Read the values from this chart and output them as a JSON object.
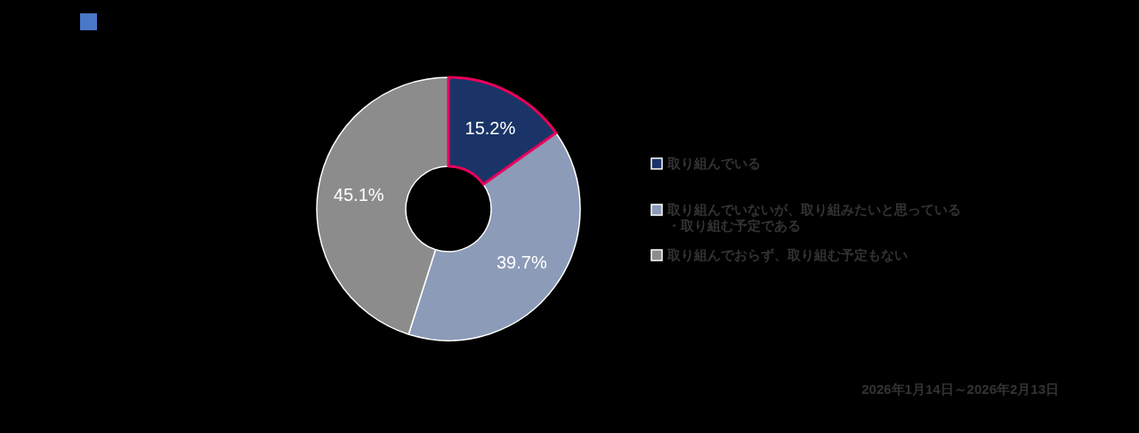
{
  "chart_data": {
    "type": "donut",
    "categories": [
      "取り組んでいる",
      "取り組んでいないが、取り組みたいと思っている・取り組む予定である",
      "取り組んでおらず、取り組む予定もない"
    ],
    "values": [
      15.2,
      39.7,
      45.1
    ],
    "colors": [
      "#1b3468",
      "#8c9bb8",
      "#8c8c8c"
    ],
    "value_labels": [
      "15.2%",
      "39.7%",
      "45.1%"
    ],
    "legend": "right",
    "annotations": [
      "2026年1月14日～2026年2月13日"
    ]
  }
}
